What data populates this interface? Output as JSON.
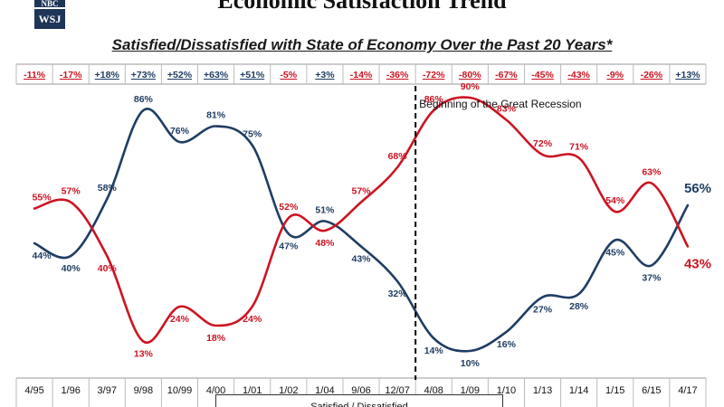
{
  "header": {
    "title": "Economic Satisfaction Trend",
    "subtitle": "Satisfied/Dissatisfied with State of Economy Over the Past 20 Years*",
    "logos": [
      "NBC",
      "WSJ"
    ]
  },
  "colors": {
    "satisfied": "#1f3d63",
    "dissatisfied": "#cc1422",
    "net_positive": "#1f3d63",
    "net_negative": "#cc1422"
  },
  "chart_data": {
    "type": "line",
    "title": "Satisfied/Dissatisfied with State of Economy Over the Past 20 Years*",
    "categories": [
      "4/95",
      "1/96",
      "3/97",
      "9/98",
      "10/99",
      "4/00",
      "1/01",
      "1/02",
      "1/04",
      "9/06",
      "12/07",
      "4/08",
      "1/09",
      "1/10",
      "1/13",
      "1/14",
      "1/15",
      "6/15",
      "4/17"
    ],
    "net_labels": [
      "-11%",
      "-17%",
      "+18%",
      "+73%",
      "+52%",
      "+63%",
      "+51%",
      "-5%",
      "+3%",
      "-14%",
      "-36%",
      "-72%",
      "-80%",
      "-67%",
      "-45%",
      "-43%",
      "-9%",
      "-26%",
      "+13%"
    ],
    "series": [
      {
        "name": "Satisfied",
        "values": [
          44,
          40,
          58,
          86,
          76,
          81,
          75,
          47,
          51,
          43,
          32,
          14,
          10,
          16,
          27,
          28,
          45,
          37,
          56
        ],
        "labels": [
          "44%",
          "40%",
          "58%",
          "86%",
          "76%",
          "81%",
          "75%",
          "47%",
          "51%",
          "43%",
          "32%",
          "14%",
          "10%",
          "16%",
          "27%",
          "28%",
          "45%",
          "37%",
          "56%"
        ]
      },
      {
        "name": "Dissatisfied",
        "values": [
          55,
          57,
          40,
          13,
          24,
          18,
          24,
          52,
          48,
          57,
          68,
          86,
          90,
          83,
          72,
          71,
          54,
          63,
          43
        ],
        "labels": [
          "55%",
          "57%",
          "40%",
          "13%",
          "24%",
          "18%",
          "24%",
          "52%",
          "48%",
          "57%",
          "68%",
          "86%",
          "90%",
          "83%",
          "72%",
          "71%",
          "54%",
          "63%",
          "43%"
        ]
      }
    ],
    "annotation": {
      "text": "Beginning of the Great Recession",
      "between": [
        "12/07",
        "4/08"
      ]
    },
    "legend": {
      "text": "Satisfied / Dissatisfied"
    },
    "ylim": [
      0,
      100
    ],
    "xlabel": "",
    "ylabel": ""
  }
}
